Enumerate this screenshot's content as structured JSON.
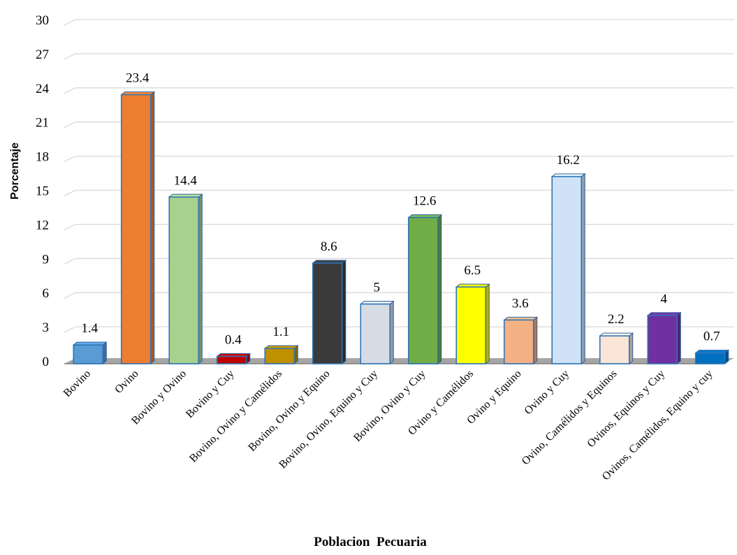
{
  "chart_data": {
    "type": "bar",
    "title": "",
    "xlabel": "Poblacion  Pecuaria",
    "ylabel": "Porcentaje",
    "ylim": [
      0,
      30
    ],
    "yticks": [
      "0",
      "3",
      "6",
      "9",
      "12",
      "15",
      "18",
      "21",
      "24",
      "27",
      "30"
    ],
    "grid": true,
    "categories": [
      "Bovino",
      "Ovino",
      "Bovino y Ovino",
      "Bovino y Cuy",
      "Bovino, Ovino y Camélidos",
      "Bovino, Ovino y Equino",
      "Bovino, Ovino, Equino y Cuy",
      "Bovino, Ovino y Cuy",
      "Ovino y Camélidos",
      "Ovino y Equino",
      "Ovino y Cuy",
      "Ovino, Camélidos y Equinos",
      "Ovinos, Equinos y Cuy",
      "Ovinos, Camélidos, Equino y cuy"
    ],
    "values": [
      1.4,
      23.4,
      14.4,
      0.4,
      1.1,
      8.6,
      5,
      12.6,
      6.5,
      3.6,
      16.2,
      2.2,
      4,
      0.7
    ],
    "data_labels": [
      "1.4",
      "23.4",
      "14.4",
      "0.4",
      "1.1",
      "8.6",
      "5",
      "12.6",
      "6.5",
      "3.6",
      "16.2",
      "2.2",
      "4",
      "0.7"
    ],
    "colors": [
      "#5b9bd5",
      "#ed7d31",
      "#a9d18e",
      "#c00000",
      "#bf9000",
      "#3a3a3a",
      "#d6dce4",
      "#70ad47",
      "#ffff00",
      "#f4b183",
      "#cfe2f7",
      "#fbe5d6",
      "#7030a0",
      "#0070c0"
    ]
  }
}
